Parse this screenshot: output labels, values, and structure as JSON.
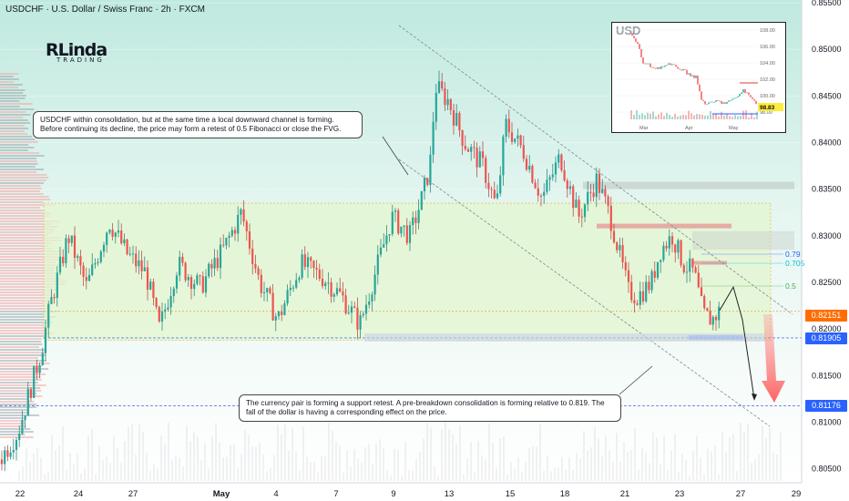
{
  "header": {
    "title": "USDCHF · U.S. Dollar / Swiss Franc · 2h · FXCM"
  },
  "logo": {
    "main": "RLinda",
    "sub": "TRADING"
  },
  "callouts": {
    "top": "USDCHF within consolidation, but at the same time a local downward channel is forming. Before continuing its decline, the price may form a retest of 0.5 Fibonacci or close the FVG.",
    "bottom": "The currency pair is forming a support retest. A pre-breakdown consolidation is forming relative to 0.819. The fall of the dollar is having a corresponding effect on the price."
  },
  "fib_labels": [
    {
      "label": "0.79",
      "color": "#2962ff"
    },
    {
      "label": "0.705",
      "color": "#00bcd4"
    },
    {
      "label": "0.5",
      "color": "#4caf50"
    }
  ],
  "price_tags": [
    {
      "label": "0.82151",
      "value": 0.82151,
      "color": "#ff6d00"
    },
    {
      "label": "0.81905",
      "value": 0.81905,
      "color": "#2962ff"
    },
    {
      "label": "0.81176",
      "value": 0.81176,
      "color": "#2962ff"
    }
  ],
  "inset": {
    "title": "USD",
    "y_ticks": [
      "108.00",
      "106.00",
      "104.00",
      "102.00",
      "100.00",
      "98.00"
    ],
    "x_ticks": [
      "Mar",
      "Apr",
      "May"
    ],
    "last_value": "98.83"
  },
  "colors": {
    "up": "#26a69a",
    "down": "#ef5350",
    "zone_fill": "#d8f0c8",
    "background_top": "#cdeee6"
  },
  "chart_data": {
    "type": "candlestick",
    "symbol": "USDCHF",
    "timeframe": "2h",
    "y_ticks": [
      0.855,
      0.85,
      0.845,
      0.84,
      0.835,
      0.83,
      0.825,
      0.82,
      0.815,
      0.81,
      0.805
    ],
    "y_tick_labels": [
      "0.85500",
      "0.85000",
      "0.84500",
      "0.84000",
      "0.83500",
      "0.83000",
      "0.82500",
      "0.82000",
      "0.81500",
      "0.81000",
      "0.80500"
    ],
    "ylim": [
      0.8035,
      0.8553
    ],
    "x_ticks": [
      "22",
      "24",
      "27",
      "May",
      "4",
      "7",
      "9",
      "13",
      "15",
      "18",
      "21",
      "23",
      "27",
      "29"
    ],
    "consolidation_zone": [
      0.8188,
      0.8335
    ],
    "support_levels": [
      0.8219,
      0.81905
    ],
    "fvg_zones": [
      [
        0.835,
        0.8358
      ],
      [
        0.8308,
        0.8313
      ],
      [
        0.8269,
        0.8273
      ]
    ],
    "price_path": [
      [
        0,
        0.806
      ],
      [
        20,
        0.809
      ],
      [
        45,
        0.8175
      ],
      [
        55,
        0.8225
      ],
      [
        75,
        0.83
      ],
      [
        95,
        0.8245
      ],
      [
        120,
        0.8315
      ],
      [
        140,
        0.828
      ],
      [
        160,
        0.826
      ],
      [
        175,
        0.82
      ],
      [
        195,
        0.827
      ],
      [
        220,
        0.8245
      ],
      [
        245,
        0.8285
      ],
      [
        265,
        0.8325
      ],
      [
        285,
        0.825
      ],
      [
        305,
        0.821
      ],
      [
        330,
        0.827
      ],
      [
        355,
        0.8255
      ],
      [
        375,
        0.8235
      ],
      [
        395,
        0.8205
      ],
      [
        415,
        0.827
      ],
      [
        430,
        0.832
      ],
      [
        450,
        0.83
      ],
      [
        463,
        0.834
      ],
      [
        472,
        0.8375
      ],
      [
        478,
        0.846
      ],
      [
        492,
        0.8445
      ],
      [
        510,
        0.84
      ],
      [
        530,
        0.8375
      ],
      [
        545,
        0.833
      ],
      [
        555,
        0.842
      ],
      [
        575,
        0.839
      ],
      [
        595,
        0.834
      ],
      [
        615,
        0.8385
      ],
      [
        635,
        0.832
      ],
      [
        655,
        0.836
      ],
      [
        670,
        0.832
      ],
      [
        680,
        0.828
      ],
      [
        690,
        0.824
      ],
      [
        700,
        0.8235
      ],
      [
        715,
        0.825
      ],
      [
        725,
        0.8285
      ],
      [
        738,
        0.83
      ],
      [
        750,
        0.827
      ],
      [
        762,
        0.826
      ],
      [
        772,
        0.8215
      ],
      [
        782,
        0.821
      ],
      [
        790,
        0.822
      ]
    ],
    "projection": [
      [
        790,
        0.822
      ],
      [
        805,
        0.8245
      ],
      [
        815,
        0.821
      ],
      [
        828,
        0.8125
      ]
    ],
    "title": "USDCHF · U.S. Dollar / Swiss Franc · 2h · FXCM"
  }
}
